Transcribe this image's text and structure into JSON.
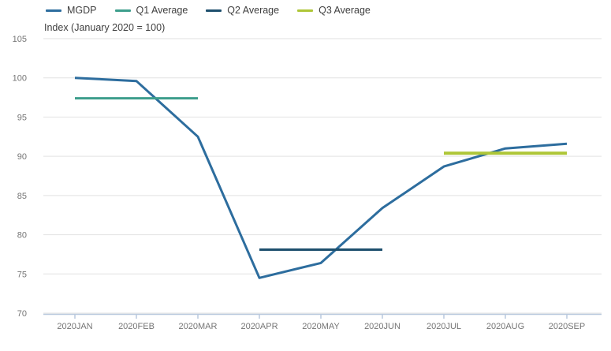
{
  "chart_data": {
    "type": "line",
    "title": "Index (January 2020 = 100)",
    "categories": [
      "2020JAN",
      "2020FEB",
      "2020MAR",
      "2020APR",
      "2020MAY",
      "2020JUN",
      "2020JUL",
      "2020AUG",
      "2020SEP"
    ],
    "series": [
      {
        "name": "MGDP",
        "color": "#2d6d9e",
        "width": 3,
        "values": [
          100.0,
          99.6,
          92.5,
          74.5,
          76.4,
          83.4,
          88.7,
          91.0,
          91.6
        ]
      },
      {
        "name": "Q1 Average",
        "color": "#3d9e8c",
        "width": 3,
        "values": [
          97.4,
          97.4,
          97.4,
          null,
          null,
          null,
          null,
          null,
          null
        ]
      },
      {
        "name": "Q2 Average",
        "color": "#1d4f6d",
        "width": 3,
        "values": [
          null,
          null,
          null,
          78.1,
          78.1,
          78.1,
          null,
          null,
          null
        ]
      },
      {
        "name": "Q3 Average",
        "color": "#aec637",
        "width": 4,
        "values": [
          null,
          null,
          null,
          null,
          null,
          null,
          90.4,
          90.4,
          90.4
        ]
      }
    ],
    "xlabel": "",
    "ylabel": "",
    "ylim": [
      70,
      105
    ],
    "ytick_step": 5,
    "grid": "horizontal",
    "legend_position": "top-left",
    "colors": {
      "grid": "#e2e2e2",
      "axis": "#b9c9de",
      "tick_text": "#757575",
      "legend_text": "#3f3f3f",
      "title_text": "#404040",
      "background": "#ffffff"
    }
  }
}
